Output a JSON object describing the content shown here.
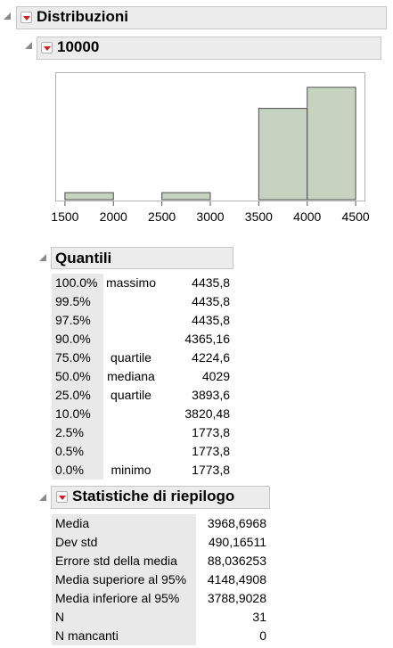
{
  "report": {
    "title": "Distribuzioni",
    "variable": "10000"
  },
  "chart_data": {
    "type": "bar",
    "title": "",
    "xlabel": "",
    "ylabel": "",
    "xlim": [
      1400,
      4600
    ],
    "ylim": [
      0,
      16
    ],
    "x_ticks": [
      "1500",
      "2000",
      "2500",
      "3000",
      "3500",
      "4000",
      "4500"
    ],
    "bins": [
      {
        "start": 1500,
        "end": 2000,
        "count": 1
      },
      {
        "start": 2000,
        "end": 2500,
        "count": 0
      },
      {
        "start": 2500,
        "end": 3000,
        "count": 1
      },
      {
        "start": 3000,
        "end": 3500,
        "count": 0
      },
      {
        "start": 3500,
        "end": 4000,
        "count": 13
      },
      {
        "start": 4000,
        "end": 4500,
        "count": 16
      }
    ],
    "bar_color": "#c5d3c0",
    "bar_edge": "#4d4d4d"
  },
  "quantiles": {
    "title": "Quantili",
    "rows": [
      {
        "pct": "100.0%",
        "label": "massimo",
        "value": "4435,8"
      },
      {
        "pct": "99.5%",
        "label": "",
        "value": "4435,8"
      },
      {
        "pct": "97.5%",
        "label": "",
        "value": "4435,8"
      },
      {
        "pct": "90.0%",
        "label": "",
        "value": "4365,16"
      },
      {
        "pct": "75.0%",
        "label": "quartile",
        "value": "4224,6"
      },
      {
        "pct": "50.0%",
        "label": "mediana",
        "value": "4029"
      },
      {
        "pct": "25.0%",
        "label": "quartile",
        "value": "3893,6"
      },
      {
        "pct": "10.0%",
        "label": "",
        "value": "3820,48"
      },
      {
        "pct": "2.5%",
        "label": "",
        "value": "1773,8"
      },
      {
        "pct": "0.5%",
        "label": "",
        "value": "1773,8"
      },
      {
        "pct": "0.0%",
        "label": "minimo",
        "value": "1773,8"
      }
    ]
  },
  "summary": {
    "title": "Statistiche di riepilogo",
    "rows": [
      {
        "label": "Media",
        "value": "3968,6968"
      },
      {
        "label": "Dev std",
        "value": "490,16511"
      },
      {
        "label": "Errore std della media",
        "value": "88,036253"
      },
      {
        "label": "Media superiore al 95%",
        "value": "4148,4908"
      },
      {
        "label": "Media inferiore al 95%",
        "value": "3788,9028"
      },
      {
        "label": "N",
        "value": "31"
      },
      {
        "label": "N mancanti",
        "value": "0"
      }
    ]
  }
}
